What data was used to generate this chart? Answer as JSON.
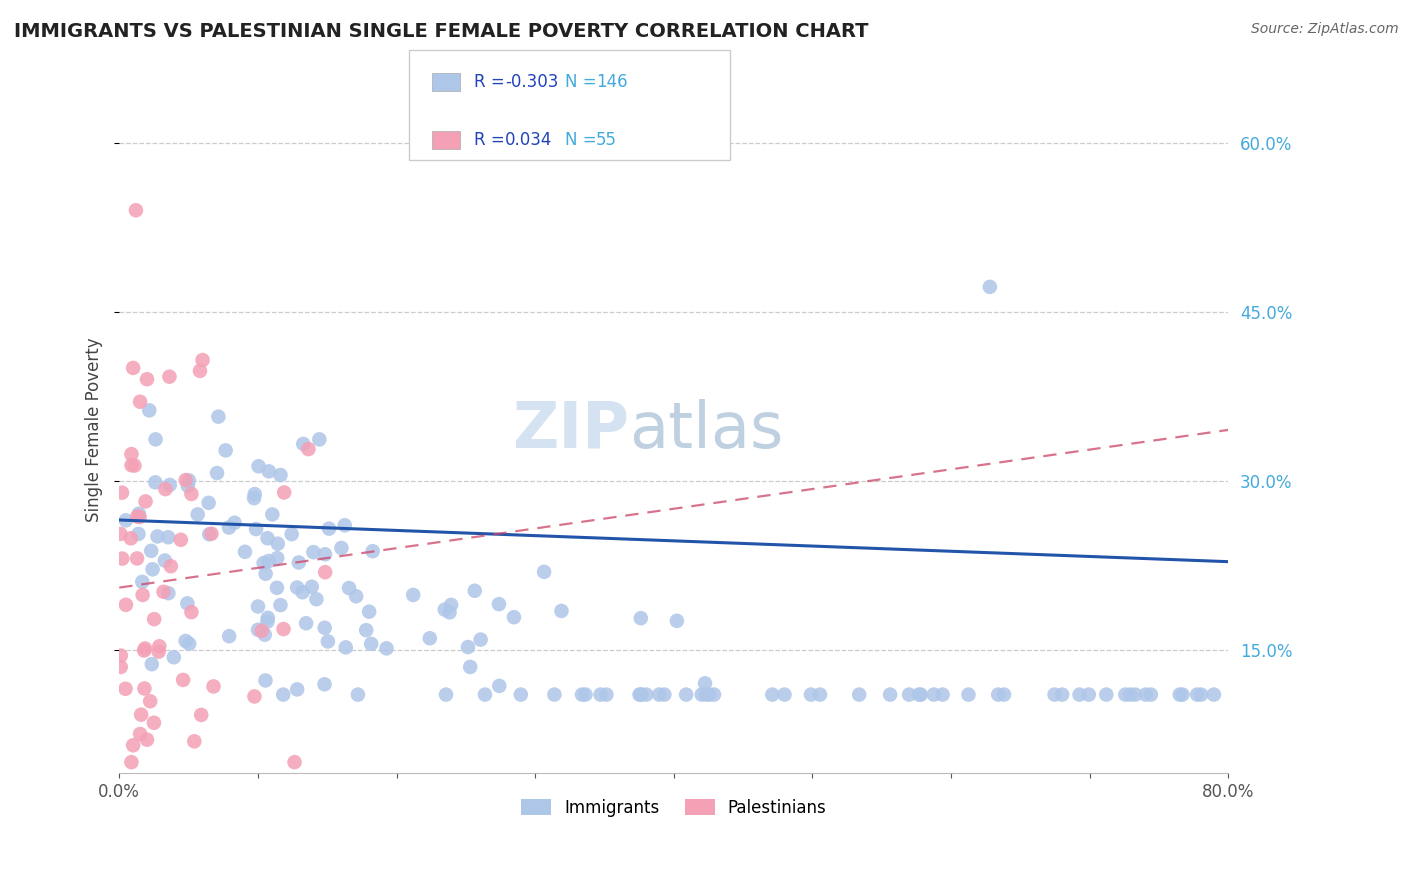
{
  "title": "IMMIGRANTS VS PALESTINIAN SINGLE FEMALE POVERTY CORRELATION CHART",
  "source": "Source: ZipAtlas.com",
  "xlabel_immigrants": "Immigrants",
  "xlabel_palestinians": "Palestinians",
  "ylabel": "Single Female Poverty",
  "xmin": 0.0,
  "xmax": 0.8,
  "ymin": 0.04,
  "ymax": 0.65,
  "yticks": [
    0.15,
    0.3,
    0.45,
    0.6
  ],
  "xticks": [
    0.0,
    0.1,
    0.2,
    0.3,
    0.4,
    0.5,
    0.6,
    0.7,
    0.8
  ],
  "blue_R": -0.303,
  "blue_N": 146,
  "pink_R": 0.034,
  "pink_N": 55,
  "blue_color": "#aec6e8",
  "blue_line_color": "#2255aa",
  "pink_color": "#f4a0b5",
  "pink_line_color": "#cc4466",
  "background_color": "#ffffff",
  "grid_color": "#cccccc",
  "watermark_color": "#d0dff0",
  "legend_R_color": "#2244bb",
  "legend_N_color": "#44aadd",
  "blue_line_start_y": 0.265,
  "blue_line_end_y": 0.228,
  "pink_line_start_y": 0.205,
  "pink_line_end_y": 0.345
}
